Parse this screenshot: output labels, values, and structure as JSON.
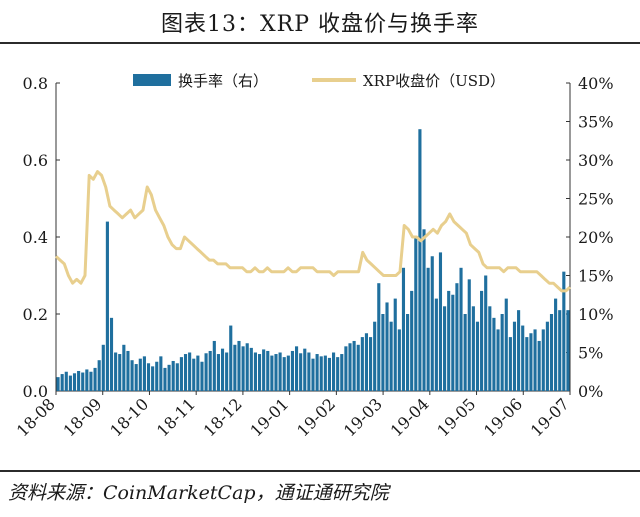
{
  "title": "图表13：XRP 收盘价与换手率",
  "source": "资料来源：CoinMarketCap，通证通研究院",
  "chart_data": {
    "type": "bar+line",
    "x_ticks": [
      "18-08",
      "18-09",
      "18-10",
      "18-11",
      "18-12",
      "19-01",
      "19-02",
      "19-03",
      "19-04",
      "19-05",
      "19-06",
      "19-07"
    ],
    "y_left": {
      "ticks": [
        "0.0",
        "0.2",
        "0.4",
        "0.6",
        "0.8"
      ],
      "min": 0,
      "max": 0.8
    },
    "y_right": {
      "ticks": [
        "0%",
        "5%",
        "10%",
        "15%",
        "20%",
        "25%",
        "30%",
        "35%",
        "40%"
      ],
      "min": 0,
      "max": 40
    },
    "legend": {
      "position": "top",
      "bar_label": "换手率（右）",
      "line_label": "XRP收盘价（USD）"
    },
    "colors": {
      "bar": "#1f6f9e",
      "line": "#e8cf8e"
    },
    "series": [
      {
        "name": "换手率（右）",
        "axis": "right",
        "kind": "bar",
        "unit": "%",
        "values": [
          1.8,
          2.2,
          2.5,
          2.0,
          2.3,
          2.6,
          2.4,
          2.8,
          2.5,
          3.0,
          4.0,
          6.0,
          22.0,
          9.5,
          5.0,
          4.8,
          6.0,
          5.2,
          4.0,
          3.5,
          4.2,
          4.5,
          3.6,
          3.2,
          3.8,
          4.5,
          3.0,
          3.4,
          3.9,
          3.6,
          4.4,
          4.8,
          5.0,
          4.2,
          4.6,
          3.8,
          4.9,
          5.2,
          6.5,
          4.8,
          5.5,
          5.0,
          8.5,
          6.0,
          6.5,
          5.8,
          6.2,
          5.6,
          5.0,
          4.8,
          5.4,
          5.2,
          4.6,
          4.8,
          5.0,
          4.4,
          4.6,
          5.2,
          5.8,
          4.9,
          5.5,
          5.0,
          4.2,
          4.8,
          4.5,
          4.6,
          4.3,
          5.0,
          4.4,
          4.8,
          5.8,
          6.2,
          6.5,
          6.0,
          7.0,
          7.5,
          7.0,
          9.0,
          14.0,
          10.0,
          11.5,
          9.0,
          12.0,
          8.0,
          16.0,
          10.0,
          13.0,
          20.0,
          34.0,
          21.0,
          16.0,
          17.5,
          12.0,
          18.0,
          11.0,
          13.0,
          12.5,
          14.0,
          16.0,
          10.0,
          14.5,
          11.0,
          9.0,
          13.0,
          15.0,
          11.0,
          9.5,
          8.0,
          10.0,
          12.0,
          7.0,
          9.0,
          10.5,
          8.5,
          7.0,
          7.5,
          8.0,
          6.5,
          8.0,
          9.0,
          10.0,
          12.0,
          10.5,
          15.5,
          10.5
        ],
        "peak_note": "峰值约34%"
      },
      {
        "name": "XRP收盘价（USD）",
        "axis": "left",
        "kind": "line",
        "unit": "USD",
        "values": [
          0.35,
          0.34,
          0.33,
          0.3,
          0.28,
          0.29,
          0.28,
          0.3,
          0.56,
          0.55,
          0.57,
          0.56,
          0.53,
          0.48,
          0.47,
          0.46,
          0.45,
          0.46,
          0.47,
          0.45,
          0.46,
          0.47,
          0.53,
          0.51,
          0.47,
          0.45,
          0.43,
          0.4,
          0.38,
          0.37,
          0.37,
          0.4,
          0.39,
          0.38,
          0.37,
          0.36,
          0.35,
          0.34,
          0.34,
          0.33,
          0.33,
          0.33,
          0.32,
          0.32,
          0.32,
          0.32,
          0.31,
          0.31,
          0.32,
          0.31,
          0.31,
          0.32,
          0.31,
          0.31,
          0.31,
          0.31,
          0.32,
          0.31,
          0.31,
          0.32,
          0.32,
          0.32,
          0.32,
          0.31,
          0.31,
          0.31,
          0.31,
          0.3,
          0.31,
          0.31,
          0.31,
          0.31,
          0.31,
          0.31,
          0.36,
          0.34,
          0.33,
          0.32,
          0.31,
          0.3,
          0.3,
          0.3,
          0.3,
          0.31,
          0.43,
          0.42,
          0.4,
          0.4,
          0.39,
          0.4,
          0.41,
          0.42,
          0.41,
          0.43,
          0.44,
          0.46,
          0.44,
          0.43,
          0.42,
          0.41,
          0.38,
          0.37,
          0.36,
          0.33,
          0.32,
          0.32,
          0.32,
          0.32,
          0.31,
          0.32,
          0.32,
          0.32,
          0.31,
          0.31,
          0.31,
          0.31,
          0.31,
          0.3,
          0.29,
          0.28,
          0.28,
          0.27,
          0.26,
          0.26,
          0.27
        ]
      }
    ]
  }
}
